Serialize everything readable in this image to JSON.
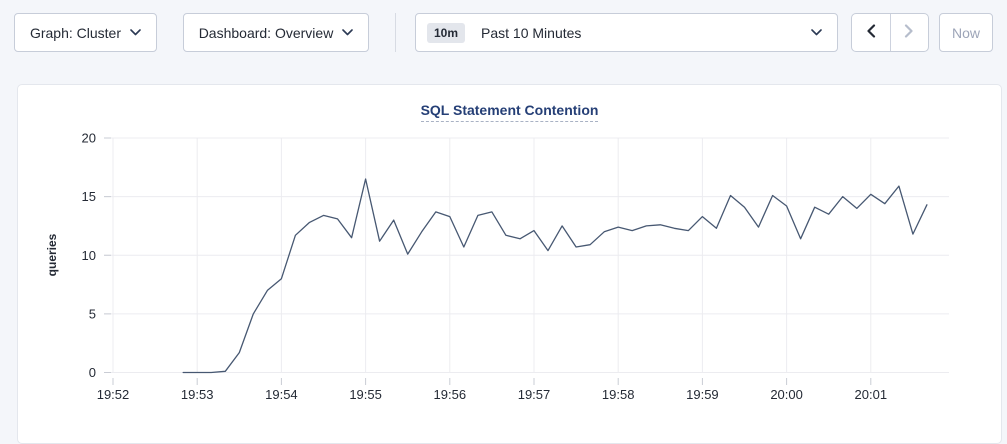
{
  "toolbar": {
    "graph_dropdown": {
      "label": "Graph: Cluster",
      "icon": "chevron-down-icon"
    },
    "dashboard_dropdown": {
      "label": "Dashboard: Overview",
      "icon": "chevron-down-icon"
    },
    "time_selector": {
      "badge": "10m",
      "label": "Past 10 Minutes",
      "icon": "chevron-down-icon"
    },
    "prev_button": {
      "icon": "chevron-left-icon",
      "enabled": true
    },
    "next_button": {
      "icon": "chevron-right-icon",
      "enabled": false
    },
    "now_button": {
      "label": "Now",
      "enabled": false
    }
  },
  "chart_data": {
    "type": "line",
    "title": "SQL Statement Contention",
    "xlabel": "",
    "ylabel": "queries",
    "ylim": [
      0,
      20
    ],
    "y_ticks": [
      0,
      5,
      10,
      15,
      20
    ],
    "x_tick_labels": [
      "19:52",
      "19:53",
      "19:54",
      "19:55",
      "19:56",
      "19:57",
      "19:58",
      "19:59",
      "20:00",
      "20:01"
    ],
    "grid": true,
    "legend": "none",
    "series": [
      {
        "name": "SQL Statement Contention",
        "unit": "queries",
        "start_time": "19:52:50",
        "end_time": "20:01:40",
        "interval_seconds": 10,
        "values": [
          0,
          0,
          0,
          0.1,
          1.7,
          5,
          7,
          8,
          11.7,
          12.8,
          13.4,
          13.1,
          11.5,
          16.5,
          11.2,
          13,
          10.1,
          12,
          13.7,
          13.3,
          10.7,
          13.4,
          13.7,
          11.7,
          11.4,
          12.1,
          10.4,
          12.5,
          10.7,
          10.9,
          12,
          12.4,
          12.1,
          12.5,
          12.6,
          12.3,
          12.1,
          13.3,
          12.3,
          15.1,
          14.1,
          12.4,
          15.1,
          14.2,
          11.4,
          14.1,
          13.5,
          15,
          14,
          15.2,
          14.4,
          15.9,
          11.8,
          14.3
        ]
      }
    ],
    "colors": {
      "line": "#475872",
      "grid": "#ececf0",
      "axis_tick": "#c9ccd4",
      "tick_text": "#242a35",
      "title": "#253f76"
    }
  }
}
